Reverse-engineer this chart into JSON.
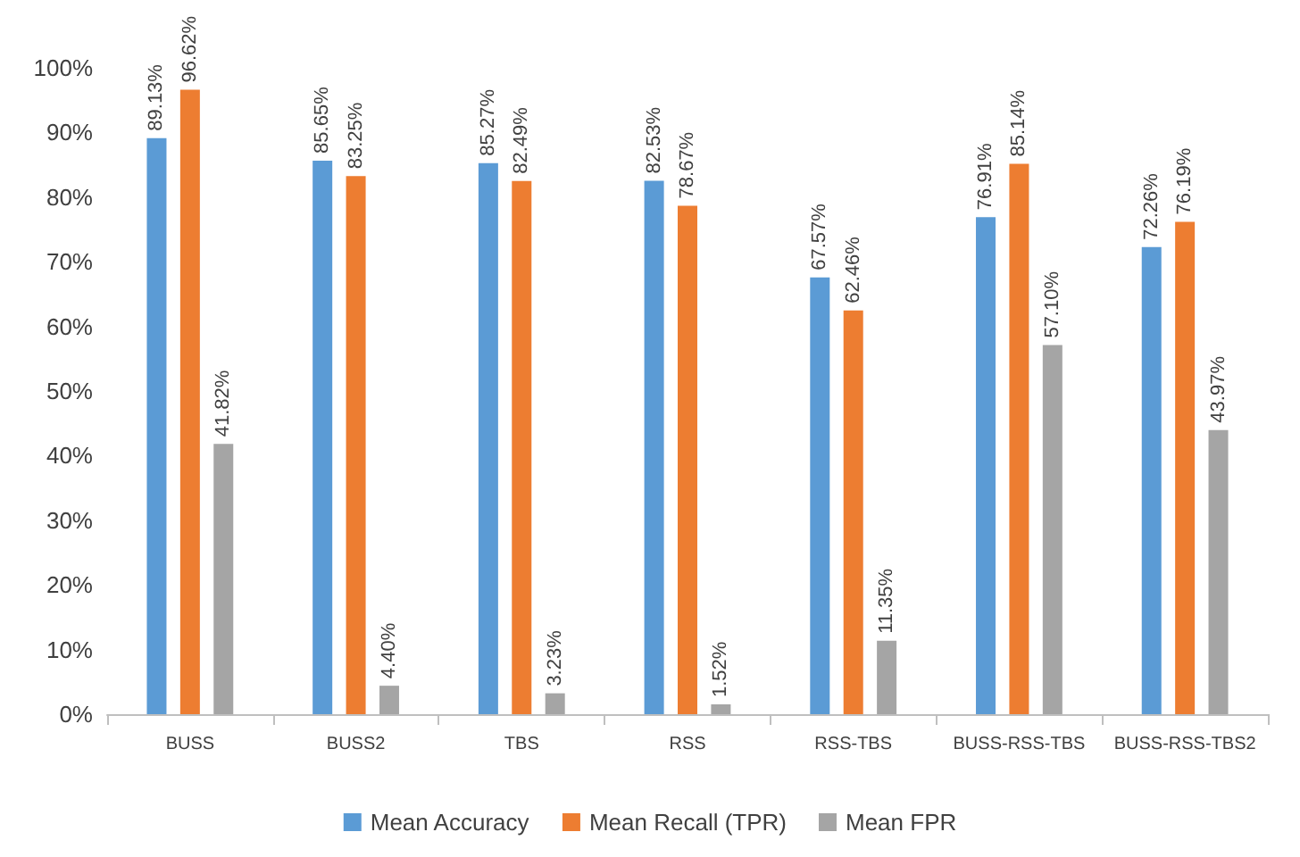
{
  "chart_data": {
    "type": "bar",
    "categories": [
      "BUSS",
      "BUSS2",
      "TBS",
      "RSS",
      "RSS-TBS",
      "BUSS-RSS-TBS",
      "BUSS-RSS-TBS2"
    ],
    "series": [
      {
        "name": "Mean Accuracy",
        "color": "#5b9bd5",
        "values": [
          89.13,
          85.65,
          85.27,
          82.53,
          67.57,
          76.91,
          72.26
        ],
        "value_labels": [
          "89.13%",
          "85.65%",
          "85.27%",
          "82.53%",
          "67.57%",
          "76.91%",
          "72.26%"
        ]
      },
      {
        "name": "Mean Recall (TPR)",
        "color": "#ed7d31",
        "values": [
          96.62,
          83.25,
          82.49,
          78.67,
          62.46,
          85.14,
          76.19
        ],
        "value_labels": [
          "96.62%",
          "83.25%",
          "82.49%",
          "78.67%",
          "62.46%",
          "85.14%",
          "76.19%"
        ]
      },
      {
        "name": "Mean FPR",
        "color": "#a5a5a5",
        "values": [
          41.82,
          4.4,
          3.23,
          1.52,
          11.35,
          57.1,
          43.97
        ],
        "value_labels": [
          "41.82%",
          "4.40%",
          "3.23%",
          "1.52%",
          "11.35%",
          "57.10%",
          "43.97%"
        ]
      }
    ],
    "ylim": [
      0,
      100
    ],
    "yticks": [
      {
        "value": 0,
        "label": "0%"
      },
      {
        "value": 10,
        "label": "10%"
      },
      {
        "value": 20,
        "label": "20%"
      },
      {
        "value": 30,
        "label": "30%"
      },
      {
        "value": 40,
        "label": "40%"
      },
      {
        "value": 50,
        "label": "50%"
      },
      {
        "value": 60,
        "label": "60%"
      },
      {
        "value": 70,
        "label": "70%"
      },
      {
        "value": 80,
        "label": "80%"
      },
      {
        "value": 90,
        "label": "90%"
      },
      {
        "value": 100,
        "label": "100%"
      }
    ],
    "grid": false,
    "legend": "bottom"
  }
}
